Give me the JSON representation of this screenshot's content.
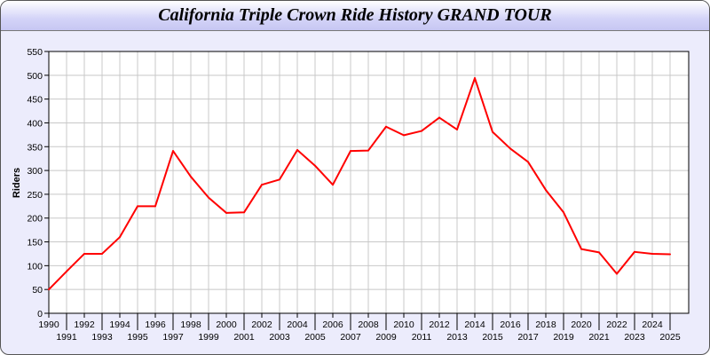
{
  "chart_data": {
    "type": "line",
    "title": "California Triple Crown Ride History GRAND TOUR",
    "xlabel": "",
    "ylabel": "Riders",
    "ylim": [
      0,
      550
    ],
    "yticks": [
      0,
      50,
      100,
      150,
      200,
      250,
      300,
      350,
      400,
      450,
      500,
      550
    ],
    "grid": true,
    "colors": {
      "line": "#ff0000",
      "grid": "#c8c8c8",
      "background": "#ececfc"
    },
    "x": [
      1990,
      1991,
      1992,
      1993,
      1994,
      1995,
      1996,
      1997,
      1998,
      1999,
      2000,
      2001,
      2002,
      2003,
      2004,
      2005,
      2006,
      2007,
      2008,
      2009,
      2010,
      2011,
      2012,
      2013,
      2014,
      2015,
      2016,
      2017,
      2018,
      2019,
      2020,
      2021,
      2022,
      2023,
      2024,
      2025
    ],
    "series": [
      {
        "values": [
          50,
          88,
          125,
          125,
          160,
          225,
          225,
          341,
          287,
          243,
          211,
          212,
          270,
          281,
          343,
          310,
          270,
          341,
          342,
          392,
          374,
          383,
          411,
          386,
          494,
          381,
          346,
          318,
          259,
          212,
          135,
          128,
          83,
          129,
          125,
          124
        ]
      }
    ]
  }
}
